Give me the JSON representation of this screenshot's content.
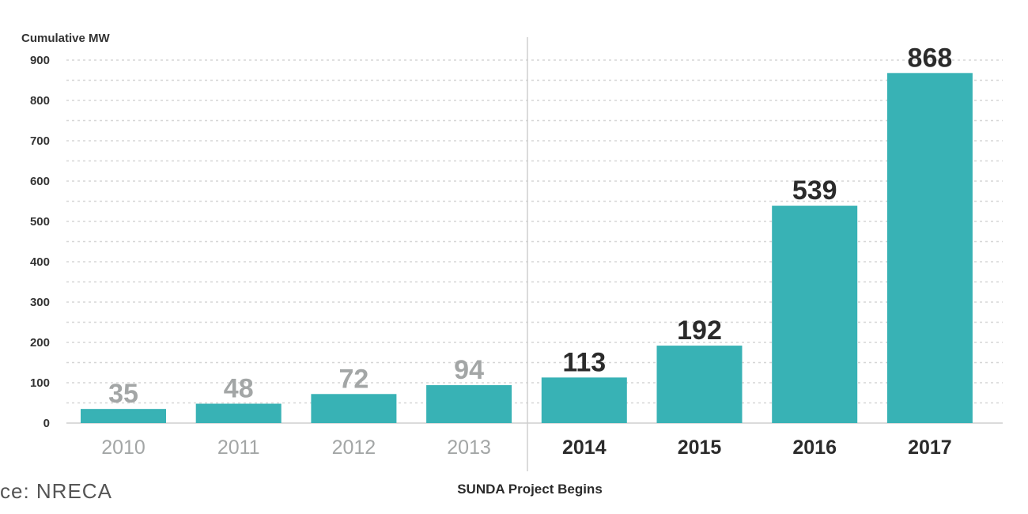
{
  "chart_data": {
    "type": "bar",
    "ylabel": "Cumulative MW",
    "categories": [
      "2010",
      "2011",
      "2012",
      "2013",
      "2014",
      "2015",
      "2016",
      "2017"
    ],
    "values": [
      35,
      48,
      72,
      94,
      113,
      192,
      539,
      868
    ],
    "ylim": [
      0,
      900
    ],
    "yticks": [
      0,
      100,
      200,
      300,
      400,
      500,
      600,
      700,
      800,
      900
    ],
    "grid": true,
    "bar_color": "#38b2b5",
    "muted_label_color": "#a3a6a6",
    "highlight_label_color": "#2b2b2b",
    "highlight_from_category": "2014",
    "annotation": "SUNDA Project Begins"
  },
  "source": "ce: NRECA"
}
